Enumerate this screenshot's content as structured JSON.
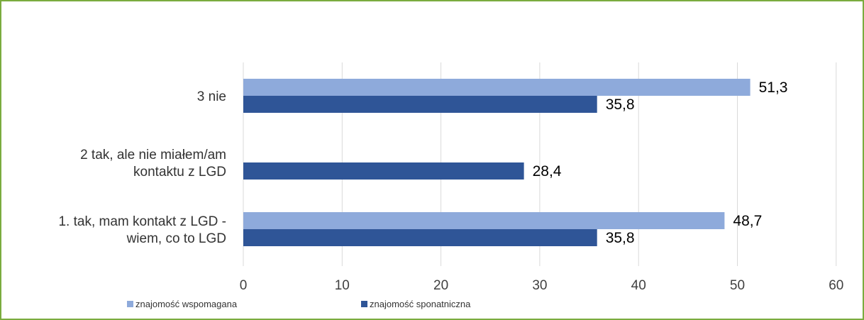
{
  "frame": {
    "border_color": "#7aab3e"
  },
  "chart_data": {
    "type": "bar",
    "orientation": "horizontal",
    "title": "",
    "xlabel": "",
    "ylabel": "",
    "categories": [
      "1. tak, mam kontakt z LGD - wiem, co to LGD",
      "2 tak, ale nie miałem/am kontaktu z LGD",
      "3 nie"
    ],
    "category_lines": [
      [
        "1. tak, mam kontakt z LGD -",
        "wiem, co to LGD"
      ],
      [
        "2 tak, ale nie miałem/am",
        "kontaktu z LGD"
      ],
      [
        "3 nie"
      ]
    ],
    "series": [
      {
        "name": "znajomość wspomagana",
        "color": "#8eaadb",
        "values": [
          48.7,
          null,
          51.3
        ],
        "labels": [
          "48,7",
          "",
          "51,3"
        ]
      },
      {
        "name": "znajomość sponatniczna",
        "color": "#2f5597",
        "values": [
          35.8,
          28.4,
          35.8
        ],
        "labels": [
          "35,8",
          "28,4",
          "35,8"
        ]
      }
    ],
    "xlim": [
      0,
      60
    ],
    "ticks": [
      0,
      10,
      20,
      30,
      40,
      50,
      60
    ],
    "grid": true,
    "grid_color": "#d9d9d9",
    "legend_position": "bottom-left"
  }
}
